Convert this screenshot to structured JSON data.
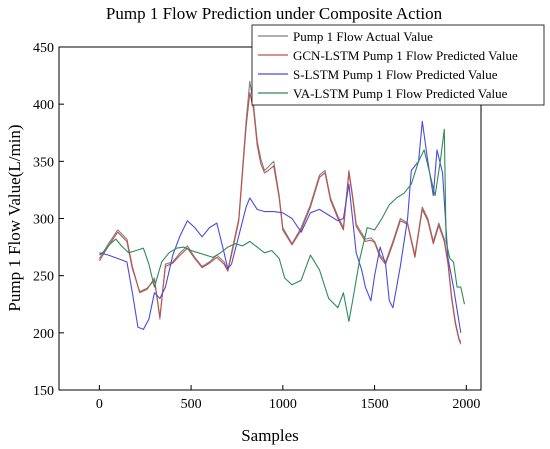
{
  "chart_data": {
    "type": "line",
    "title": "Pump 1 Flow Prediction under Composite Action",
    "xlabel": "Samples",
    "ylabel": "Pump 1 Flow Value(L/min)",
    "xlim": [
      -220,
      2080
    ],
    "ylim": [
      150,
      450
    ],
    "xticks": [
      0,
      500,
      1000,
      1500,
      2000
    ],
    "yticks": [
      150,
      200,
      250,
      300,
      350,
      400,
      450
    ],
    "legend": "top-right",
    "grid": false,
    "series": [
      {
        "name": "Pump 1 Flow Actual Value",
        "color": "#7f7f7f",
        "x": [
          0,
          50,
          100,
          150,
          180,
          220,
          260,
          300,
          330,
          360,
          400,
          440,
          480,
          520,
          560,
          600,
          640,
          680,
          700,
          720,
          760,
          800,
          820,
          840,
          860,
          880,
          900,
          920,
          950,
          980,
          1000,
          1050,
          1100,
          1150,
          1200,
          1230,
          1260,
          1300,
          1330,
          1360,
          1380,
          1400,
          1450,
          1480,
          1500,
          1530,
          1560,
          1600,
          1640,
          1680,
          1720,
          1760,
          1790,
          1820,
          1850,
          1880,
          1900,
          1920,
          1940,
          1960,
          1970
        ],
        "y": [
          265,
          278,
          290,
          282,
          258,
          235,
          238,
          248,
          212,
          260,
          262,
          270,
          276,
          266,
          258,
          262,
          268,
          262,
          255,
          270,
          300,
          385,
          420,
          400,
          368,
          352,
          342,
          345,
          350,
          320,
          292,
          278,
          292,
          312,
          338,
          342,
          318,
          302,
          292,
          342,
          320,
          295,
          282,
          283,
          280,
          268,
          262,
          280,
          300,
          296,
          268,
          310,
          300,
          280,
          296,
          282,
          262,
          232,
          210,
          195,
          192
        ]
      },
      {
        "name": "GCN-LSTM Pump 1 Flow Predicted Value",
        "color": "#c0504d",
        "x": [
          0,
          50,
          100,
          150,
          180,
          220,
          260,
          300,
          330,
          360,
          400,
          440,
          480,
          520,
          560,
          600,
          640,
          680,
          700,
          720,
          760,
          800,
          820,
          840,
          860,
          880,
          900,
          920,
          950,
          980,
          1000,
          1050,
          1100,
          1150,
          1200,
          1230,
          1260,
          1300,
          1330,
          1360,
          1380,
          1400,
          1450,
          1480,
          1500,
          1530,
          1560,
          1600,
          1640,
          1680,
          1720,
          1760,
          1790,
          1820,
          1850,
          1880,
          1900,
          1920,
          1940,
          1960,
          1970
        ],
        "y": [
          263,
          276,
          288,
          280,
          256,
          236,
          239,
          246,
          214,
          258,
          261,
          268,
          274,
          265,
          257,
          261,
          266,
          260,
          254,
          268,
          298,
          380,
          410,
          396,
          364,
          348,
          340,
          342,
          346,
          318,
          290,
          277,
          290,
          310,
          336,
          340,
          316,
          300,
          290,
          340,
          318,
          293,
          280,
          281,
          279,
          266,
          260,
          278,
          298,
          295,
          266,
          308,
          298,
          278,
          294,
          280,
          260,
          230,
          208,
          194,
          190
        ]
      },
      {
        "name": "S-LSTM Pump 1 Flow Predicted Value",
        "color": "#4a4ae0",
        "x": [
          0,
          50,
          100,
          150,
          180,
          210,
          240,
          270,
          300,
          330,
          360,
          400,
          440,
          480,
          520,
          560,
          600,
          640,
          680,
          700,
          720,
          760,
          800,
          820,
          860,
          900,
          950,
          1000,
          1050,
          1100,
          1150,
          1200,
          1250,
          1300,
          1330,
          1360,
          1400,
          1430,
          1450,
          1480,
          1500,
          1530,
          1560,
          1580,
          1600,
          1640,
          1680,
          1700,
          1740,
          1760,
          1790,
          1820,
          1840,
          1870,
          1900,
          1930,
          1950,
          1970
        ],
        "y": [
          270,
          268,
          265,
          262,
          235,
          205,
          203,
          212,
          235,
          230,
          240,
          268,
          285,
          298,
          292,
          284,
          292,
          296,
          270,
          256,
          260,
          285,
          310,
          318,
          308,
          306,
          306,
          305,
          300,
          288,
          305,
          308,
          303,
          298,
          300,
          330,
          270,
          255,
          240,
          228,
          250,
          275,
          260,
          228,
          222,
          258,
          300,
          342,
          350,
          385,
          350,
          320,
          360,
          340,
          265,
          240,
          220,
          200
        ]
      },
      {
        "name": "VA-LSTM Pump 1 Flow Predicted Value",
        "color": "#2e8b57",
        "x": [
          0,
          30,
          60,
          90,
          120,
          160,
          200,
          240,
          270,
          300,
          340,
          380,
          420,
          460,
          500,
          540,
          580,
          620,
          660,
          700,
          740,
          780,
          820,
          860,
          900,
          940,
          980,
          1010,
          1050,
          1100,
          1150,
          1200,
          1250,
          1300,
          1330,
          1360,
          1380,
          1420,
          1460,
          1500,
          1540,
          1580,
          1620,
          1660,
          1700,
          1740,
          1770,
          1800,
          1830,
          1860,
          1880,
          1890,
          1910,
          1930,
          1950,
          1970,
          1990
        ],
        "y": [
          268,
          272,
          278,
          282,
          276,
          270,
          272,
          274,
          260,
          240,
          262,
          270,
          274,
          275,
          272,
          270,
          268,
          266,
          270,
          275,
          278,
          276,
          280,
          275,
          270,
          272,
          265,
          248,
          242,
          246,
          268,
          255,
          230,
          222,
          235,
          210,
          228,
          265,
          292,
          290,
          300,
          312,
          318,
          322,
          330,
          350,
          360,
          340,
          320,
          352,
          378,
          280,
          265,
          262,
          240,
          240,
          225
        ]
      }
    ]
  }
}
